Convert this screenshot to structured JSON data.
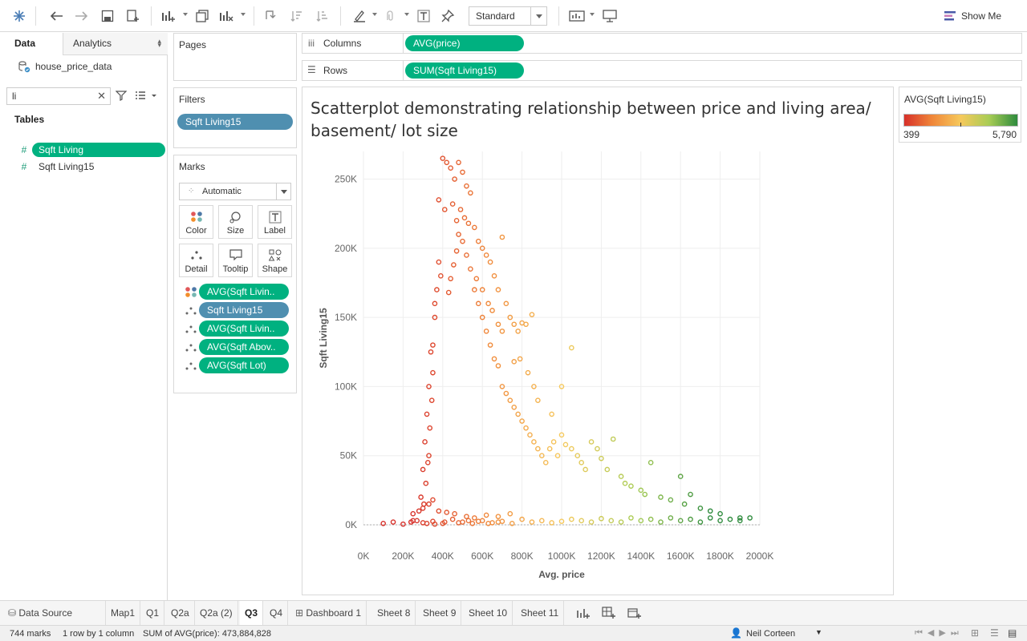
{
  "toolbar": {
    "fit_mode": "Standard",
    "show_me_label": "Show Me"
  },
  "data_pane": {
    "tab_data": "Data",
    "tab_analytics": "Analytics",
    "datasource_name": "house_price_data",
    "search_value": "li",
    "tables_label": "Tables",
    "fields": [
      "Sqft Living",
      "Sqft Living15"
    ]
  },
  "shelves": {
    "pages_label": "Pages",
    "filters_label": "Filters",
    "filter_pill": "Sqft Living15",
    "columns_label": "Columns",
    "columns_pill": "AVG(price)",
    "rows_label": "Rows",
    "rows_pill": "SUM(Sqft Living15)"
  },
  "marks": {
    "title": "Marks",
    "mark_type": "Automatic",
    "buttons": [
      "Color",
      "Size",
      "Label",
      "Detail",
      "Tooltip",
      "Shape"
    ],
    "pills": [
      "AVG(Sqft Livin..",
      "Sqft Living15",
      "AVG(Sqft Livin..",
      "AVG(Sqft Abov..",
      "AVG(Sqft Lot)"
    ]
  },
  "legend": {
    "title": "AVG(Sqft Living15)",
    "min_label": "399",
    "max_label": "5,790",
    "colors": [
      "#d7302a",
      "#f0883a",
      "#f6c95c",
      "#a8cc55",
      "#2e8b3d"
    ]
  },
  "chart_data": {
    "type": "scatter",
    "title": "Scatterplot demonstrating relationship between price  and living area/ basement/ lot size",
    "xlabel": "Avg. price",
    "ylabel": "Sqft Living15",
    "xlim": [
      0,
      2000000
    ],
    "ylim": [
      0,
      270000
    ],
    "x_ticks": [
      "0K",
      "200K",
      "400K",
      "600K",
      "800K",
      "1000K",
      "1200K",
      "1400K",
      "1600K",
      "1800K",
      "2000K"
    ],
    "y_ticks": [
      "0K",
      "50K",
      "100K",
      "150K",
      "200K",
      "250K"
    ],
    "grid": true,
    "marks_count": 744,
    "series": [
      {
        "name": "main cluster",
        "points": [
          [
            400000,
            265000
          ],
          [
            420000,
            262000
          ],
          [
            440000,
            258000
          ],
          [
            460000,
            250000
          ],
          [
            480000,
            262000
          ],
          [
            500000,
            255000
          ],
          [
            520000,
            245000
          ],
          [
            540000,
            240000
          ],
          [
            380000,
            235000
          ],
          [
            410000,
            228000
          ],
          [
            450000,
            232000
          ],
          [
            470000,
            220000
          ],
          [
            490000,
            228000
          ],
          [
            510000,
            222000
          ],
          [
            530000,
            218000
          ],
          [
            560000,
            215000
          ],
          [
            580000,
            205000
          ],
          [
            600000,
            200000
          ],
          [
            620000,
            195000
          ],
          [
            640000,
            190000
          ],
          [
            660000,
            180000
          ],
          [
            680000,
            170000
          ],
          [
            700000,
            208000
          ],
          [
            720000,
            160000
          ],
          [
            740000,
            150000
          ],
          [
            760000,
            145000
          ],
          [
            780000,
            140000
          ],
          [
            800000,
            146000
          ],
          [
            820000,
            145000
          ],
          [
            850000,
            152000
          ],
          [
            380000,
            190000
          ],
          [
            390000,
            180000
          ],
          [
            370000,
            170000
          ],
          [
            360000,
            160000
          ],
          [
            350000,
            130000
          ],
          [
            340000,
            125000
          ],
          [
            330000,
            100000
          ],
          [
            320000,
            80000
          ],
          [
            310000,
            60000
          ],
          [
            300000,
            40000
          ],
          [
            290000,
            20000
          ],
          [
            280000,
            10000
          ],
          [
            360000,
            150000
          ],
          [
            350000,
            110000
          ],
          [
            345000,
            90000
          ],
          [
            335000,
            70000
          ],
          [
            330000,
            50000
          ],
          [
            325000,
            45000
          ],
          [
            315000,
            30000
          ],
          [
            305000,
            15000
          ],
          [
            560000,
            170000
          ],
          [
            580000,
            160000
          ],
          [
            600000,
            150000
          ],
          [
            620000,
            140000
          ],
          [
            640000,
            130000
          ],
          [
            660000,
            120000
          ],
          [
            680000,
            115000
          ],
          [
            700000,
            100000
          ],
          [
            720000,
            95000
          ],
          [
            740000,
            90000
          ],
          [
            760000,
            85000
          ],
          [
            780000,
            80000
          ],
          [
            800000,
            75000
          ],
          [
            820000,
            70000
          ],
          [
            840000,
            65000
          ],
          [
            860000,
            60000
          ],
          [
            880000,
            55000
          ],
          [
            900000,
            50000
          ],
          [
            920000,
            45000
          ],
          [
            940000,
            55000
          ],
          [
            960000,
            60000
          ],
          [
            980000,
            50000
          ],
          [
            1000000,
            65000
          ],
          [
            1020000,
            58000
          ],
          [
            1050000,
            55000
          ],
          [
            1080000,
            50000
          ],
          [
            1100000,
            45000
          ],
          [
            1120000,
            40000
          ],
          [
            1150000,
            60000
          ],
          [
            1180000,
            55000
          ],
          [
            1200000,
            48000
          ],
          [
            1230000,
            40000
          ],
          [
            1260000,
            62000
          ],
          [
            1300000,
            35000
          ],
          [
            1320000,
            30000
          ],
          [
            1350000,
            28000
          ],
          [
            1400000,
            25000
          ],
          [
            1420000,
            22000
          ],
          [
            1450000,
            45000
          ],
          [
            1500000,
            20000
          ],
          [
            1550000,
            18000
          ],
          [
            1600000,
            35000
          ],
          [
            1620000,
            15000
          ],
          [
            1650000,
            22000
          ],
          [
            1700000,
            12000
          ],
          [
            1750000,
            10000
          ],
          [
            1800000,
            8000
          ],
          [
            1900000,
            5000
          ],
          [
            1050000,
            128000
          ],
          [
            1000000,
            100000
          ],
          [
            950000,
            80000
          ],
          [
            880000,
            90000
          ],
          [
            860000,
            100000
          ],
          [
            830000,
            110000
          ],
          [
            790000,
            120000
          ],
          [
            760000,
            118000
          ],
          [
            700000,
            140000
          ],
          [
            680000,
            145000
          ],
          [
            650000,
            155000
          ],
          [
            630000,
            160000
          ],
          [
            600000,
            170000
          ],
          [
            570000,
            178000
          ],
          [
            540000,
            185000
          ],
          [
            520000,
            195000
          ],
          [
            500000,
            205000
          ],
          [
            480000,
            210000
          ],
          [
            470000,
            198000
          ],
          [
            455000,
            188000
          ],
          [
            440000,
            178000
          ],
          [
            430000,
            168000
          ]
        ]
      },
      {
        "name": "baseline cluster",
        "points": [
          [
            100000,
            1000
          ],
          [
            150000,
            2000
          ],
          [
            200000,
            500
          ],
          [
            250000,
            3000
          ],
          [
            300000,
            1500
          ],
          [
            350000,
            2500
          ],
          [
            400000,
            1000
          ],
          [
            450000,
            4000
          ],
          [
            500000,
            2000
          ],
          [
            550000,
            1000
          ],
          [
            600000,
            3000
          ],
          [
            650000,
            1500
          ],
          [
            700000,
            2500
          ],
          [
            750000,
            1000
          ],
          [
            800000,
            4000
          ],
          [
            850000,
            2000
          ],
          [
            900000,
            3000
          ],
          [
            950000,
            1500
          ],
          [
            1000000,
            2500
          ],
          [
            1050000,
            4000
          ],
          [
            1100000,
            3000
          ],
          [
            1150000,
            2000
          ],
          [
            1200000,
            4500
          ],
          [
            1250000,
            3000
          ],
          [
            1300000,
            2000
          ],
          [
            1350000,
            5000
          ],
          [
            1400000,
            3000
          ],
          [
            1450000,
            4000
          ],
          [
            1500000,
            2000
          ],
          [
            1550000,
            5000
          ],
          [
            1600000,
            3000
          ],
          [
            1650000,
            4000
          ],
          [
            1700000,
            2000
          ],
          [
            1750000,
            5000
          ],
          [
            1800000,
            3000
          ],
          [
            1850000,
            4000
          ],
          [
            1900000,
            3000
          ],
          [
            1950000,
            5000
          ],
          [
            250000,
            8000
          ],
          [
            300000,
            12000
          ],
          [
            330000,
            15000
          ],
          [
            350000,
            18000
          ],
          [
            380000,
            10000
          ],
          [
            420000,
            9000
          ],
          [
            460000,
            8000
          ],
          [
            520000,
            6000
          ],
          [
            560000,
            5000
          ],
          [
            620000,
            7000
          ],
          [
            680000,
            6000
          ],
          [
            740000,
            8000
          ],
          [
            240000,
            2000
          ],
          [
            270000,
            3000
          ],
          [
            320000,
            1000
          ],
          [
            360000,
            500
          ],
          [
            410000,
            2000
          ],
          [
            480000,
            1500
          ],
          [
            530000,
            3000
          ],
          [
            580000,
            2500
          ],
          [
            630000,
            1000
          ],
          [
            680000,
            2000
          ]
        ]
      }
    ]
  },
  "sheet_tabs": [
    "Data Source",
    "Map1",
    "Q1",
    "Q2a",
    "Q2a (2)",
    "Q3",
    "Q4",
    "Dashboard 1",
    "Sheet 8",
    "Sheet 9",
    "Sheet 10",
    "Sheet 11"
  ],
  "active_sheet": "Q3",
  "status": {
    "marks": "744 marks",
    "dims": "1 row by 1 column",
    "sum": "SUM of AVG(price): 473,884,828",
    "user": "Neil Corteen"
  }
}
